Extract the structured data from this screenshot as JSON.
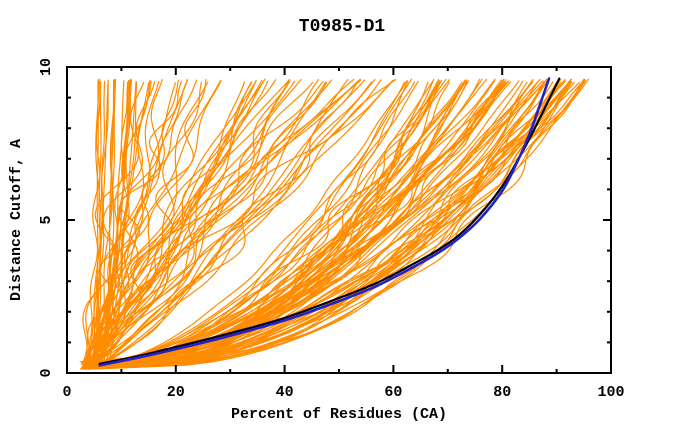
{
  "chart_data": {
    "type": "line",
    "title": "T0985-D1",
    "xlabel": "Percent of Residues (CA)",
    "ylabel": "Distance Cutoff, A",
    "xlim": [
      0,
      100
    ],
    "ylim": [
      0,
      10
    ],
    "x_major_ticks": [
      0,
      20,
      40,
      60,
      80,
      100
    ],
    "x_minor_step": 10,
    "y_major_ticks": [
      0,
      5,
      10
    ],
    "y_minor_step": 1,
    "grid": false,
    "legend": "none",
    "colors": {
      "ensemble": "#ff8c00",
      "model_black": "#000000",
      "model_blue": "#2222cc",
      "frame": "#000000",
      "background": "#ffffff"
    },
    "curve_top_y": 9.62,
    "origin_region": {
      "x_min": 2.3,
      "x_max": 5.8,
      "y_min": 0.12,
      "y_max": 0.37
    },
    "highlighted_series": [
      {
        "name": "model-black",
        "color": "#000000",
        "width": 2.2,
        "points": [
          [
            6,
            0.3
          ],
          [
            13,
            0.55
          ],
          [
            20,
            0.85
          ],
          [
            30,
            1.3
          ],
          [
            40,
            1.8
          ],
          [
            50,
            2.45
          ],
          [
            57,
            2.95
          ],
          [
            63,
            3.5
          ],
          [
            68,
            4.0
          ],
          [
            72,
            4.5
          ],
          [
            76,
            5.2
          ],
          [
            80,
            6.1
          ],
          [
            83,
            7.0
          ],
          [
            86,
            8.0
          ],
          [
            88.5,
            8.9
          ],
          [
            90.5,
            9.62
          ]
        ]
      },
      {
        "name": "model-blue",
        "color": "#2222cc",
        "width": 2.6,
        "points": [
          [
            6,
            0.25
          ],
          [
            13,
            0.5
          ],
          [
            20,
            0.78
          ],
          [
            30,
            1.22
          ],
          [
            40,
            1.72
          ],
          [
            50,
            2.35
          ],
          [
            57,
            2.85
          ],
          [
            63,
            3.4
          ],
          [
            68,
            3.9
          ],
          [
            72,
            4.4
          ],
          [
            76,
            5.05
          ],
          [
            80,
            5.95
          ],
          [
            82.5,
            6.8
          ],
          [
            85,
            7.8
          ],
          [
            87,
            8.8
          ],
          [
            88.6,
            9.62
          ]
        ]
      }
    ],
    "ensemble": {
      "name": "model-ensemble",
      "color": "#ff8c00",
      "count": 150,
      "seed": 987654321,
      "stroke_width": 1.2,
      "top_x_groups": [
        {
          "weight": 0.18,
          "min": 5,
          "max": 13,
          "alpha_min": 0.22,
          "alpha_max": 0.5,
          "amp_max": 0.7
        },
        {
          "weight": 0.22,
          "min": 14,
          "max": 62,
          "alpha_min": 0.7,
          "alpha_max": 1.3,
          "amp_max": 3.2
        },
        {
          "weight": 0.6,
          "min": 62,
          "max": 96,
          "alpha_min": 0.34,
          "alpha_max": 0.6,
          "amp_max": 2.2
        }
      ]
    }
  }
}
